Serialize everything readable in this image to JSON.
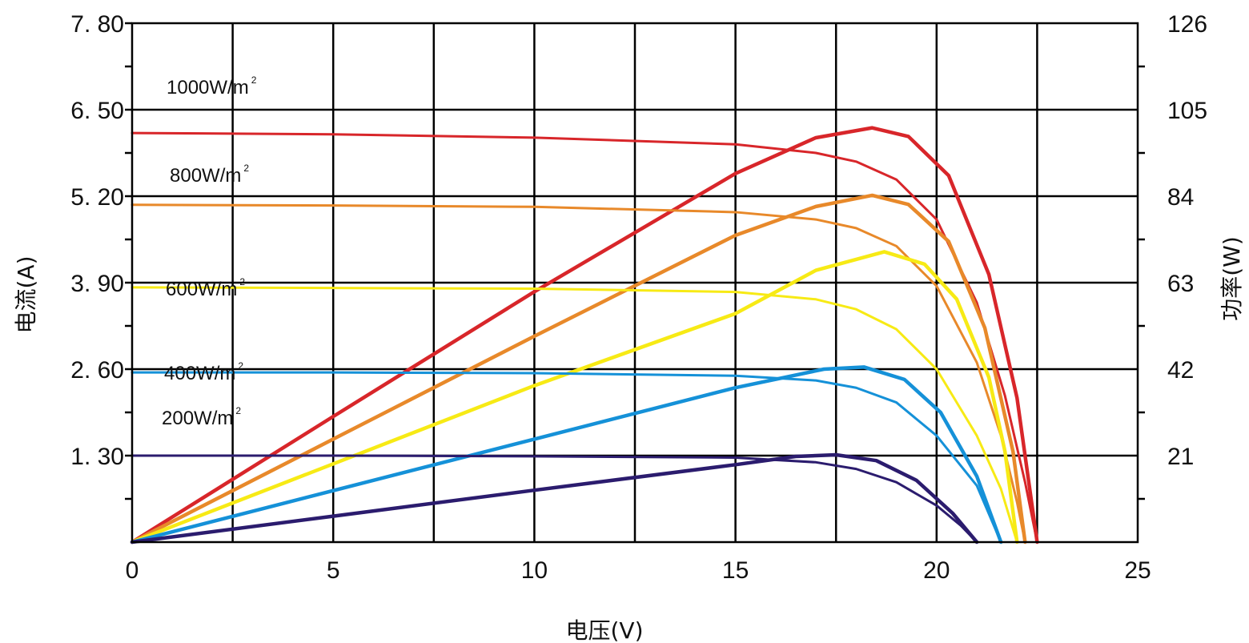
{
  "chart_data": {
    "type": "line",
    "title": "",
    "xlabel": "电压(V)",
    "ylabel": "电流(A)",
    "y2label": "功率(W)",
    "xlim": [
      0,
      25
    ],
    "ylim": [
      0,
      7.8
    ],
    "y2lim": [
      0,
      126
    ],
    "x_ticks": [
      0,
      5,
      10,
      15,
      20,
      25
    ],
    "y_ticks": [
      1.3,
      2.6,
      3.9,
      5.2,
      6.5,
      7.8
    ],
    "y_tick_labels": [
      "1. 30",
      "2. 60",
      "3. 90",
      "5. 20",
      "6. 50",
      "7. 80"
    ],
    "y2_ticks": [
      21,
      42,
      63,
      84,
      105,
      126
    ],
    "grid": true,
    "series": [
      {
        "name": "1000W/m²",
        "label_main": "1000W/m",
        "label_sup": "2",
        "color": "#d8262a",
        "iv": [
          [
            0,
            6.15
          ],
          [
            5,
            6.13
          ],
          [
            10,
            6.08
          ],
          [
            15,
            5.98
          ],
          [
            17,
            5.85
          ],
          [
            18,
            5.72
          ],
          [
            19,
            5.45
          ],
          [
            20,
            4.85
          ],
          [
            21,
            3.6
          ],
          [
            21.7,
            2.2
          ],
          [
            22.2,
            0.9
          ],
          [
            22.5,
            0
          ]
        ],
        "pv": [
          [
            0,
            0
          ],
          [
            5,
            30.5
          ],
          [
            10,
            60.8
          ],
          [
            15,
            89.5
          ],
          [
            17,
            98.2
          ],
          [
            18.4,
            100.6
          ],
          [
            19.3,
            98.5
          ],
          [
            20.3,
            89
          ],
          [
            21.3,
            65
          ],
          [
            22.0,
            35
          ],
          [
            22.5,
            0
          ]
        ]
      },
      {
        "name": "800W/m²",
        "label_main": "800W/m",
        "label_sup": "2",
        "color": "#e8892a",
        "iv": [
          [
            0,
            5.07
          ],
          [
            5,
            5.06
          ],
          [
            10,
            5.04
          ],
          [
            15,
            4.96
          ],
          [
            17,
            4.85
          ],
          [
            18,
            4.72
          ],
          [
            19,
            4.45
          ],
          [
            20,
            3.85
          ],
          [
            21,
            2.7
          ],
          [
            21.6,
            1.6
          ],
          [
            22.0,
            0.6
          ],
          [
            22.2,
            0
          ]
        ],
        "pv": [
          [
            0,
            0
          ],
          [
            5,
            25
          ],
          [
            10,
            50
          ],
          [
            15,
            74.5
          ],
          [
            17,
            81.5
          ],
          [
            18.4,
            84.2
          ],
          [
            19.3,
            82
          ],
          [
            20.3,
            73
          ],
          [
            21.2,
            52
          ],
          [
            21.9,
            22
          ],
          [
            22.2,
            0
          ]
        ]
      },
      {
        "name": "600W/m²",
        "label_main": "600W/m",
        "label_sup": "2",
        "color": "#f7ea15",
        "iv": [
          [
            0,
            3.83
          ],
          [
            5,
            3.82
          ],
          [
            10,
            3.81
          ],
          [
            15,
            3.76
          ],
          [
            17,
            3.65
          ],
          [
            18,
            3.5
          ],
          [
            19,
            3.2
          ],
          [
            20,
            2.6
          ],
          [
            21,
            1.6
          ],
          [
            21.6,
            0.8
          ],
          [
            22.0,
            0
          ]
        ],
        "pv": [
          [
            0,
            0
          ],
          [
            5,
            19
          ],
          [
            10,
            38
          ],
          [
            15,
            55.5
          ],
          [
            17,
            66
          ],
          [
            18.7,
            70.5
          ],
          [
            19.7,
            67.5
          ],
          [
            20.5,
            59
          ],
          [
            21.3,
            40
          ],
          [
            21.7,
            22
          ],
          [
            22.0,
            0
          ]
        ]
      },
      {
        "name": "400W/m²",
        "label_main": "400W/m",
        "label_sup": "2",
        "color": "#1591d8",
        "iv": [
          [
            0,
            2.55
          ],
          [
            5,
            2.55
          ],
          [
            10,
            2.54
          ],
          [
            15,
            2.5
          ],
          [
            17,
            2.43
          ],
          [
            18,
            2.32
          ],
          [
            19,
            2.1
          ],
          [
            20,
            1.6
          ],
          [
            21,
            0.85
          ],
          [
            21.6,
            0
          ]
        ],
        "pv": [
          [
            0,
            0
          ],
          [
            5,
            12.5
          ],
          [
            10,
            25
          ],
          [
            15,
            37.5
          ],
          [
            17.2,
            42
          ],
          [
            18.2,
            42.5
          ],
          [
            19.2,
            39.5
          ],
          [
            20.1,
            31.5
          ],
          [
            21.0,
            16
          ],
          [
            21.6,
            0
          ]
        ]
      },
      {
        "name": "200W/m²",
        "label_main": "200W/m",
        "label_sup": "2",
        "color": "#2b1c6e",
        "iv": [
          [
            0,
            1.3
          ],
          [
            5,
            1.3
          ],
          [
            10,
            1.29
          ],
          [
            15,
            1.27
          ],
          [
            17,
            1.2
          ],
          [
            18,
            1.1
          ],
          [
            19,
            0.9
          ],
          [
            20,
            0.55
          ],
          [
            20.6,
            0.25
          ],
          [
            21.0,
            0
          ]
        ],
        "pv": [
          [
            0,
            0
          ],
          [
            5,
            6.3
          ],
          [
            10,
            12.6
          ],
          [
            15,
            18.8
          ],
          [
            16.5,
            20.8
          ],
          [
            17.5,
            21.2
          ],
          [
            18.5,
            19.8
          ],
          [
            19.5,
            15
          ],
          [
            20.4,
            7
          ],
          [
            21.0,
            0
          ]
        ]
      }
    ]
  }
}
